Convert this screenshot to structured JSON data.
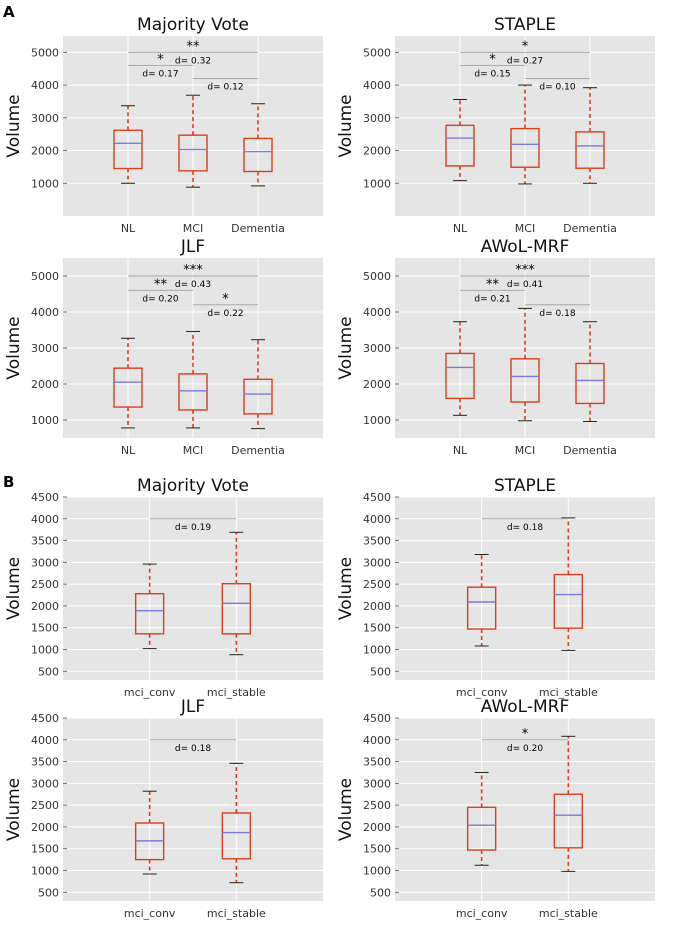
{
  "panel_labels": [
    "A",
    "B"
  ],
  "chart_data": [
    {
      "type": "box",
      "panel": "A",
      "title": "Majority Vote",
      "ylabel": "Volume",
      "ylim": [
        0,
        5500
      ],
      "yticks": [
        1000,
        2000,
        3000,
        4000,
        5000
      ],
      "categories": [
        "NL",
        "MCI",
        "Dementia"
      ],
      "boxes": [
        {
          "whislo": 1000,
          "q1": 1450,
          "med": 2220,
          "q3": 2620,
          "whishi": 3370
        },
        {
          "whislo": 880,
          "q1": 1380,
          "med": 2030,
          "q3": 2470,
          "whishi": 3690
        },
        {
          "whislo": 920,
          "q1": 1360,
          "med": 1970,
          "q3": 2370,
          "whishi": 3430
        }
      ],
      "comparisons": [
        {
          "from": 0,
          "to": 2,
          "y": 5000,
          "stars": "**",
          "d": "d= 0.32"
        },
        {
          "from": 0,
          "to": 1,
          "y": 4600,
          "stars": "*",
          "d": "d= 0.17"
        },
        {
          "from": 1,
          "to": 2,
          "y": 4200,
          "stars": "",
          "d": "d= 0.12"
        }
      ]
    },
    {
      "type": "box",
      "panel": "A",
      "title": "STAPLE",
      "ylabel": "Volume",
      "ylim": [
        0,
        5500
      ],
      "yticks": [
        1000,
        2000,
        3000,
        4000,
        5000
      ],
      "categories": [
        "NL",
        "MCI",
        "Dementia"
      ],
      "boxes": [
        {
          "whislo": 1080,
          "q1": 1530,
          "med": 2380,
          "q3": 2770,
          "whishi": 3560
        },
        {
          "whislo": 980,
          "q1": 1490,
          "med": 2190,
          "q3": 2670,
          "whishi": 4000
        },
        {
          "whislo": 1000,
          "q1": 1460,
          "med": 2140,
          "q3": 2570,
          "whishi": 3920
        }
      ],
      "comparisons": [
        {
          "from": 0,
          "to": 2,
          "y": 5000,
          "stars": "*",
          "d": "d= 0.27"
        },
        {
          "from": 0,
          "to": 1,
          "y": 4600,
          "stars": "*",
          "d": "d= 0.15"
        },
        {
          "from": 1,
          "to": 2,
          "y": 4200,
          "stars": "",
          "d": "d= 0.10"
        }
      ]
    },
    {
      "type": "box",
      "panel": "A",
      "title": "JLF",
      "ylabel": "Volume",
      "ylim": [
        500,
        5500
      ],
      "yticks": [
        1000,
        2000,
        3000,
        4000,
        5000
      ],
      "categories": [
        "NL",
        "MCI",
        "Dementia"
      ],
      "boxes": [
        {
          "whislo": 780,
          "q1": 1360,
          "med": 2050,
          "q3": 2440,
          "whishi": 3270
        },
        {
          "whislo": 780,
          "q1": 1280,
          "med": 1810,
          "q3": 2280,
          "whishi": 3460
        },
        {
          "whislo": 760,
          "q1": 1170,
          "med": 1720,
          "q3": 2130,
          "whishi": 3230
        }
      ],
      "comparisons": [
        {
          "from": 0,
          "to": 2,
          "y": 5000,
          "stars": "***",
          "d": "d= 0.43"
        },
        {
          "from": 0,
          "to": 1,
          "y": 4600,
          "stars": "**",
          "d": "d= 0.20"
        },
        {
          "from": 1,
          "to": 2,
          "y": 4200,
          "stars": "*",
          "d": "d= 0.22"
        }
      ]
    },
    {
      "type": "box",
      "panel": "A",
      "title": "AWoL-MRF",
      "ylabel": "Volume",
      "ylim": [
        500,
        5500
      ],
      "yticks": [
        1000,
        2000,
        3000,
        4000,
        5000
      ],
      "categories": [
        "NL",
        "MCI",
        "Dementia"
      ],
      "boxes": [
        {
          "whislo": 1130,
          "q1": 1600,
          "med": 2460,
          "q3": 2850,
          "whishi": 3730
        },
        {
          "whislo": 980,
          "q1": 1500,
          "med": 2210,
          "q3": 2700,
          "whishi": 4100
        },
        {
          "whislo": 960,
          "q1": 1460,
          "med": 2100,
          "q3": 2570,
          "whishi": 3730
        }
      ],
      "comparisons": [
        {
          "from": 0,
          "to": 2,
          "y": 5000,
          "stars": "***",
          "d": "d= 0.41"
        },
        {
          "from": 0,
          "to": 1,
          "y": 4600,
          "stars": "**",
          "d": "d= 0.21"
        },
        {
          "from": 1,
          "to": 2,
          "y": 4200,
          "stars": "",
          "d": "d= 0.18"
        }
      ]
    },
    {
      "type": "box",
      "panel": "B",
      "title": "Majority Vote",
      "ylabel": "Volume",
      "ylim": [
        300,
        4500
      ],
      "yticks": [
        500,
        1000,
        1500,
        2000,
        2500,
        3000,
        3500,
        4000,
        4500
      ],
      "categories": [
        "mci_conv",
        "mci_stable"
      ],
      "boxes": [
        {
          "whislo": 1020,
          "q1": 1360,
          "med": 1890,
          "q3": 2280,
          "whishi": 2960
        },
        {
          "whislo": 880,
          "q1": 1360,
          "med": 2060,
          "q3": 2510,
          "whishi": 3690
        }
      ],
      "comparisons": [
        {
          "from": 0,
          "to": 1,
          "y": 4000,
          "stars": "",
          "d": "d= 0.19"
        }
      ]
    },
    {
      "type": "box",
      "panel": "B",
      "title": "STAPLE",
      "ylabel": "Volume",
      "ylim": [
        300,
        4500
      ],
      "yticks": [
        500,
        1000,
        1500,
        2000,
        2500,
        3000,
        3500,
        4000,
        4500
      ],
      "categories": [
        "mci_conv",
        "mci_stable"
      ],
      "boxes": [
        {
          "whislo": 1080,
          "q1": 1470,
          "med": 2090,
          "q3": 2430,
          "whishi": 3180
        },
        {
          "whislo": 980,
          "q1": 1490,
          "med": 2260,
          "q3": 2720,
          "whishi": 4020
        }
      ],
      "comparisons": [
        {
          "from": 0,
          "to": 1,
          "y": 4000,
          "stars": "",
          "d": "d= 0.18"
        }
      ]
    },
    {
      "type": "box",
      "panel": "B",
      "title": "JLF",
      "ylabel": "Volume",
      "ylim": [
        300,
        4500
      ],
      "yticks": [
        500,
        1000,
        1500,
        2000,
        2500,
        3000,
        3500,
        4000,
        4500
      ],
      "categories": [
        "mci_conv",
        "mci_stable"
      ],
      "boxes": [
        {
          "whislo": 920,
          "q1": 1250,
          "med": 1680,
          "q3": 2090,
          "whishi": 2820
        },
        {
          "whislo": 720,
          "q1": 1270,
          "med": 1870,
          "q3": 2320,
          "whishi": 3460
        }
      ],
      "comparisons": [
        {
          "from": 0,
          "to": 1,
          "y": 4000,
          "stars": "",
          "d": "d= 0.18"
        }
      ]
    },
    {
      "type": "box",
      "panel": "B",
      "title": "AWoL-MRF",
      "ylabel": "Volume",
      "ylim": [
        300,
        4500
      ],
      "yticks": [
        500,
        1000,
        1500,
        2000,
        2500,
        3000,
        3500,
        4000,
        4500
      ],
      "categories": [
        "mci_conv",
        "mci_stable"
      ],
      "boxes": [
        {
          "whislo": 1120,
          "q1": 1470,
          "med": 2040,
          "q3": 2450,
          "whishi": 3250
        },
        {
          "whislo": 980,
          "q1": 1520,
          "med": 2270,
          "q3": 2750,
          "whishi": 4080
        }
      ],
      "comparisons": [
        {
          "from": 0,
          "to": 1,
          "y": 4000,
          "stars": "*",
          "d": "d= 0.20"
        }
      ]
    }
  ],
  "colors": {
    "plot_bg": "#e5e5e5",
    "grid": "#ffffff",
    "box": "#d9401e",
    "median": "#7b7bd6",
    "whisker": "#e03c1e",
    "cap": "#222222",
    "sig_line": "#aaaaaa"
  }
}
